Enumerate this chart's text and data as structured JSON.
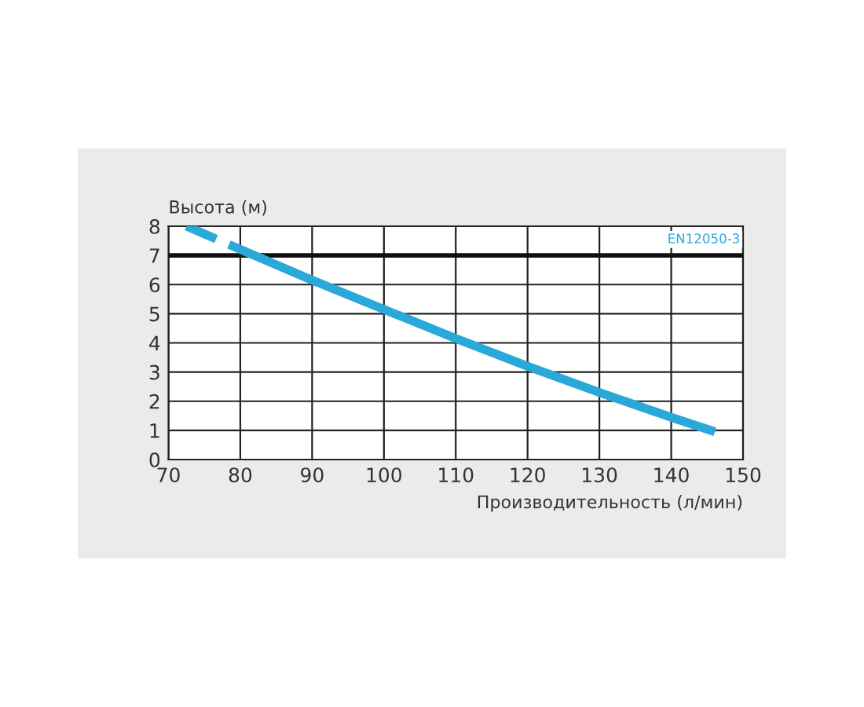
{
  "chart_data": {
    "type": "line",
    "xlabel": "Производительность (л/мин)",
    "ylabel": "Высота (м)",
    "xlim": [
      70,
      150
    ],
    "ylim": [
      0,
      8
    ],
    "xticks": [
      70,
      80,
      90,
      100,
      110,
      120,
      130,
      140,
      150
    ],
    "yticks": [
      0,
      1,
      2,
      3,
      4,
      5,
      6,
      7,
      8
    ],
    "grid": true,
    "series": [
      {
        "color": "#2aa8d8",
        "line_style": "dashed",
        "x": [
          72.5,
          81
        ],
        "values": [
          8,
          7.1
        ]
      },
      {
        "color": "#2aa8d8",
        "line_style": "solid",
        "x": [
          81,
          90,
          100,
          110,
          120,
          130,
          140,
          145.5
        ],
        "values": [
          7.1,
          6.15,
          5.15,
          4.15,
          3.2,
          2.3,
          1.45,
          1.0
        ]
      }
    ],
    "ref_lines": [
      {
        "axis": "y",
        "value": 7,
        "label": "EN12050-3",
        "color": "#111111"
      }
    ]
  }
}
